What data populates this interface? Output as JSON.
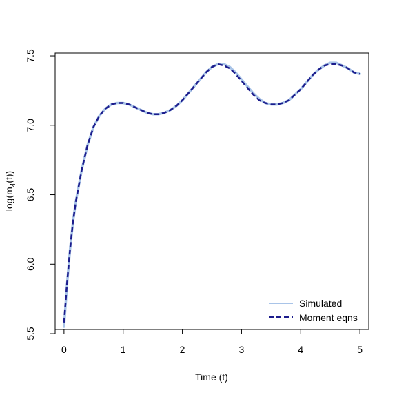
{
  "chart_data": {
    "type": "line",
    "title": "",
    "xlabel": "Time (t)",
    "ylabel": {
      "prefix": "log(m",
      "subscript": "4",
      "suffix": "(t))"
    },
    "xlim": [
      -0.15,
      5.15
    ],
    "ylim": [
      5.53,
      7.52
    ],
    "x_ticks": [
      0,
      1,
      2,
      3,
      4,
      5
    ],
    "y_ticks": [
      5.5,
      6.0,
      6.5,
      7.0,
      7.5
    ],
    "x_tick_labels": [
      "0",
      "1",
      "2",
      "3",
      "4",
      "5"
    ],
    "y_tick_labels": [
      "5.5",
      "6.0",
      "6.5",
      "7.0",
      "7.5"
    ],
    "grid": false,
    "legend_position": "bottom-right",
    "series": [
      {
        "name": "Simulated",
        "color": "#a9c4e8",
        "style": "solid",
        "x": [
          0,
          0.05,
          0.1,
          0.15,
          0.2,
          0.3,
          0.4,
          0.5,
          0.6,
          0.7,
          0.8,
          0.9,
          1.0,
          1.1,
          1.2,
          1.3,
          1.4,
          1.5,
          1.6,
          1.7,
          1.8,
          1.9,
          2.0,
          2.1,
          2.2,
          2.3,
          2.4,
          2.5,
          2.6,
          2.7,
          2.8,
          2.9,
          3.0,
          3.1,
          3.2,
          3.3,
          3.4,
          3.5,
          3.6,
          3.7,
          3.8,
          3.9,
          4.0,
          4.1,
          4.2,
          4.3,
          4.4,
          4.5,
          4.6,
          4.7,
          4.8,
          4.9,
          5.0
        ],
        "y": [
          5.55,
          5.85,
          6.1,
          6.3,
          6.45,
          6.68,
          6.86,
          6.99,
          7.07,
          7.12,
          7.15,
          7.16,
          7.16,
          7.15,
          7.13,
          7.11,
          7.09,
          7.08,
          7.08,
          7.09,
          7.11,
          7.14,
          7.18,
          7.23,
          7.28,
          7.33,
          7.38,
          7.42,
          7.44,
          7.44,
          7.42,
          7.38,
          7.33,
          7.28,
          7.23,
          7.19,
          7.16,
          7.15,
          7.15,
          7.16,
          7.18,
          7.22,
          7.26,
          7.31,
          7.36,
          7.4,
          7.43,
          7.45,
          7.45,
          7.43,
          7.41,
          7.38,
          7.37
        ]
      },
      {
        "name": "Moment eqns",
        "color": "#1c1c8c",
        "style": "dashed",
        "x": [
          0,
          0.05,
          0.1,
          0.15,
          0.2,
          0.3,
          0.4,
          0.5,
          0.6,
          0.7,
          0.8,
          0.9,
          1.0,
          1.1,
          1.2,
          1.3,
          1.4,
          1.5,
          1.6,
          1.7,
          1.8,
          1.9,
          2.0,
          2.1,
          2.2,
          2.3,
          2.4,
          2.5,
          2.6,
          2.7,
          2.8,
          2.9,
          3.0,
          3.1,
          3.2,
          3.3,
          3.4,
          3.5,
          3.6,
          3.7,
          3.8,
          3.9,
          4.0,
          4.1,
          4.2,
          4.3,
          4.4,
          4.5,
          4.6,
          4.7,
          4.8,
          4.9,
          5.0
        ],
        "y": [
          5.58,
          5.86,
          6.1,
          6.3,
          6.45,
          6.68,
          6.86,
          6.99,
          7.07,
          7.12,
          7.15,
          7.16,
          7.16,
          7.15,
          7.13,
          7.11,
          7.09,
          7.08,
          7.08,
          7.09,
          7.11,
          7.14,
          7.18,
          7.23,
          7.28,
          7.33,
          7.38,
          7.42,
          7.44,
          7.43,
          7.41,
          7.37,
          7.32,
          7.27,
          7.22,
          7.18,
          7.16,
          7.15,
          7.15,
          7.16,
          7.18,
          7.22,
          7.26,
          7.31,
          7.36,
          7.4,
          7.43,
          7.44,
          7.44,
          7.43,
          7.41,
          7.38,
          7.37
        ]
      }
    ]
  }
}
